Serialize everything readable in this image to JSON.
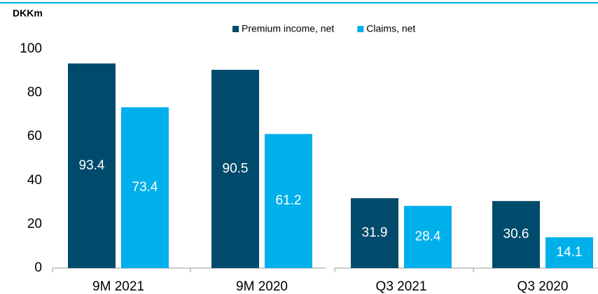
{
  "chart_data": {
    "type": "bar",
    "unit_label": "DKKm",
    "categories": [
      "9M 2021",
      "9M 2020",
      "Q3 2021",
      "Q3 2020"
    ],
    "series": [
      {
        "name": "Premium income, net",
        "color": "#004b6b",
        "values": [
          93.4,
          90.5,
          31.9,
          30.6
        ]
      },
      {
        "name": "Claims, net",
        "color": "#00b0eb",
        "values": [
          73.4,
          61.2,
          28.4,
          14.1
        ]
      }
    ],
    "ylim": [
      0,
      100
    ],
    "yticks": [
      0,
      20,
      40,
      60,
      80,
      100
    ],
    "grid": false
  }
}
